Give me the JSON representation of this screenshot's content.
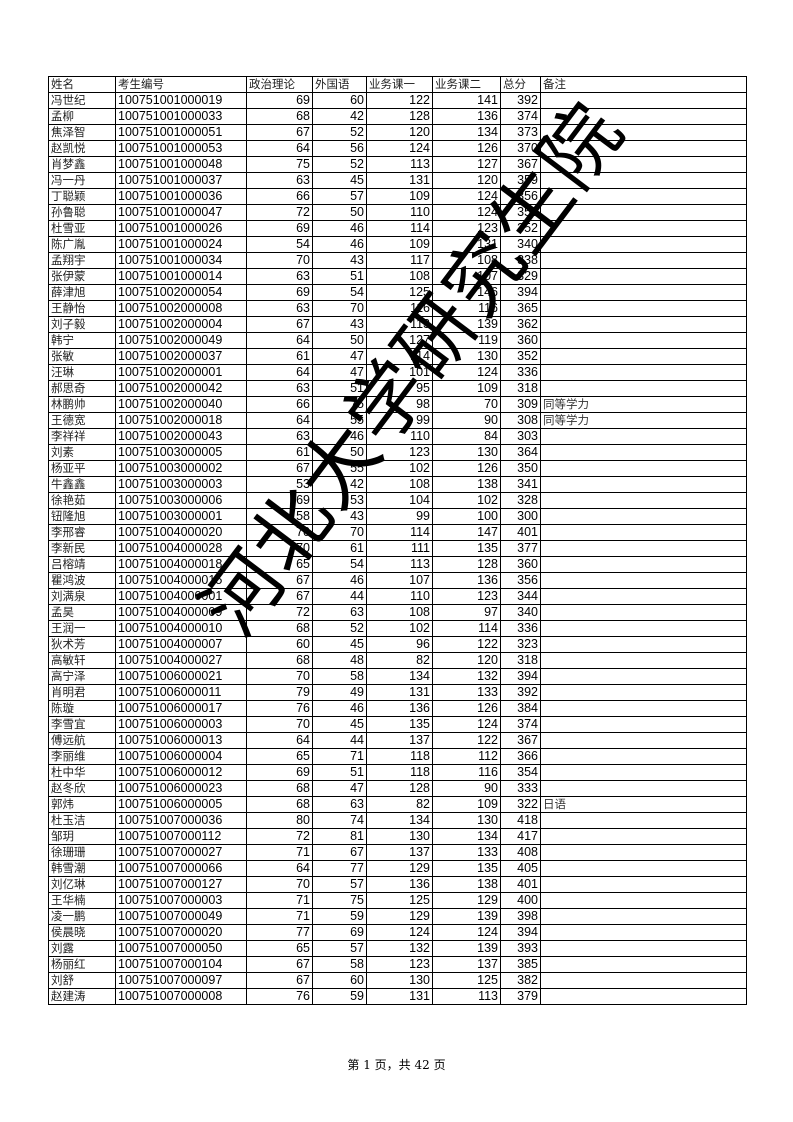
{
  "table": {
    "headers": [
      "姓名",
      "考生编号",
      "政治理论",
      "外国语",
      "业务课一",
      "业务课二",
      "总分",
      "备注"
    ],
    "rows": [
      [
        "冯世纪",
        "100751001000019",
        "69",
        "60",
        "122",
        "141",
        "392",
        ""
      ],
      [
        "孟柳",
        "100751001000033",
        "68",
        "42",
        "128",
        "136",
        "374",
        ""
      ],
      [
        "焦泽智",
        "100751001000051",
        "67",
        "52",
        "120",
        "134",
        "373",
        ""
      ],
      [
        "赵凯悦",
        "100751001000053",
        "64",
        "56",
        "124",
        "126",
        "370",
        ""
      ],
      [
        "肖梦鑫",
        "100751001000048",
        "75",
        "52",
        "113",
        "127",
        "367",
        ""
      ],
      [
        "冯一丹",
        "100751001000037",
        "63",
        "45",
        "131",
        "120",
        "359",
        ""
      ],
      [
        "丁聪颖",
        "100751001000036",
        "66",
        "57",
        "109",
        "124",
        "356",
        ""
      ],
      [
        "孙鲁聪",
        "100751001000047",
        "72",
        "50",
        "110",
        "124",
        "356",
        ""
      ],
      [
        "杜雪亚",
        "100751001000026",
        "69",
        "46",
        "114",
        "123",
        "352",
        ""
      ],
      [
        "陈广胤",
        "100751001000024",
        "54",
        "46",
        "109",
        "131",
        "340",
        ""
      ],
      [
        "孟翔宇",
        "100751001000034",
        "70",
        "43",
        "117",
        "108",
        "338",
        ""
      ],
      [
        "张伊蒙",
        "100751001000014",
        "63",
        "51",
        "108",
        "107",
        "329",
        ""
      ],
      [
        "薛津旭",
        "100751002000054",
        "69",
        "54",
        "125",
        "146",
        "394",
        ""
      ],
      [
        "王静怡",
        "100751002000008",
        "63",
        "70",
        "116",
        "116",
        "365",
        ""
      ],
      [
        "刘子毅",
        "100751002000004",
        "67",
        "43",
        "113",
        "139",
        "362",
        ""
      ],
      [
        "韩宁",
        "100751002000049",
        "64",
        "50",
        "127",
        "119",
        "360",
        ""
      ],
      [
        "张敏",
        "100751002000037",
        "61",
        "47",
        "114",
        "130",
        "352",
        ""
      ],
      [
        "汪琳",
        "100751002000001",
        "64",
        "47",
        "101",
        "124",
        "336",
        ""
      ],
      [
        "郝思奇",
        "100751002000042",
        "63",
        "51",
        "95",
        "109",
        "318",
        ""
      ],
      [
        "林鹏帅",
        "100751002000040",
        "66",
        "75",
        "98",
        "70",
        "309",
        "同等学力"
      ],
      [
        "王德宽",
        "100751002000018",
        "64",
        "55",
        "99",
        "90",
        "308",
        "同等学力"
      ],
      [
        "李祥祥",
        "100751002000043",
        "63",
        "46",
        "110",
        "84",
        "303",
        ""
      ],
      [
        "刘素",
        "100751003000005",
        "61",
        "50",
        "123",
        "130",
        "364",
        ""
      ],
      [
        "杨亚平",
        "100751003000002",
        "67",
        "55",
        "102",
        "126",
        "350",
        ""
      ],
      [
        "牛鑫鑫",
        "100751003000003",
        "53",
        "42",
        "108",
        "138",
        "341",
        ""
      ],
      [
        "徐艳茹",
        "100751003000006",
        "69",
        "53",
        "104",
        "102",
        "328",
        ""
      ],
      [
        "钮隆旭",
        "100751003000001",
        "58",
        "43",
        "99",
        "100",
        "300",
        ""
      ],
      [
        "李邢睿",
        "100751004000020",
        "70",
        "70",
        "114",
        "147",
        "401",
        ""
      ],
      [
        "李新民",
        "100751004000028",
        "70",
        "61",
        "111",
        "135",
        "377",
        ""
      ],
      [
        "吕榕靖",
        "100751004000018",
        "65",
        "54",
        "113",
        "128",
        "360",
        ""
      ],
      [
        "瞿鸿波",
        "100751004000015",
        "67",
        "46",
        "107",
        "136",
        "356",
        ""
      ],
      [
        "刘满泉",
        "100751004000001",
        "67",
        "44",
        "110",
        "123",
        "344",
        ""
      ],
      [
        "孟昊",
        "100751004000009",
        "72",
        "63",
        "108",
        "97",
        "340",
        ""
      ],
      [
        "王润一",
        "100751004000010",
        "68",
        "52",
        "102",
        "114",
        "336",
        ""
      ],
      [
        "狄术芳",
        "100751004000007",
        "60",
        "45",
        "96",
        "122",
        "323",
        ""
      ],
      [
        "高敏轩",
        "100751004000027",
        "68",
        "48",
        "82",
        "120",
        "318",
        ""
      ],
      [
        "高宁泽",
        "100751006000021",
        "70",
        "58",
        "134",
        "132",
        "394",
        ""
      ],
      [
        "肖明君",
        "100751006000011",
        "79",
        "49",
        "131",
        "133",
        "392",
        ""
      ],
      [
        "陈璇",
        "100751006000017",
        "76",
        "46",
        "136",
        "126",
        "384",
        ""
      ],
      [
        "李雪宜",
        "100751006000003",
        "70",
        "45",
        "135",
        "124",
        "374",
        ""
      ],
      [
        "傅远航",
        "100751006000013",
        "64",
        "44",
        "137",
        "122",
        "367",
        ""
      ],
      [
        "李丽维",
        "100751006000004",
        "65",
        "71",
        "118",
        "112",
        "366",
        ""
      ],
      [
        "杜中华",
        "100751006000012",
        "69",
        "51",
        "118",
        "116",
        "354",
        ""
      ],
      [
        "赵冬欣",
        "100751006000023",
        "68",
        "47",
        "128",
        "90",
        "333",
        ""
      ],
      [
        "郭炜",
        "100751006000005",
        "68",
        "63",
        "82",
        "109",
        "322",
        "日语"
      ],
      [
        "杜玉洁",
        "100751007000036",
        "80",
        "74",
        "134",
        "130",
        "418",
        ""
      ],
      [
        "邹玥",
        "100751007000112",
        "72",
        "81",
        "130",
        "134",
        "417",
        ""
      ],
      [
        "徐珊珊",
        "100751007000027",
        "71",
        "67",
        "137",
        "133",
        "408",
        ""
      ],
      [
        "韩雪潮",
        "100751007000066",
        "64",
        "77",
        "129",
        "135",
        "405",
        ""
      ],
      [
        "刘亿琳",
        "100751007000127",
        "70",
        "57",
        "136",
        "138",
        "401",
        ""
      ],
      [
        "王华楠",
        "100751007000003",
        "71",
        "75",
        "125",
        "129",
        "400",
        ""
      ],
      [
        "凌一鹏",
        "100751007000049",
        "71",
        "59",
        "129",
        "139",
        "398",
        ""
      ],
      [
        "侯晨晓",
        "100751007000020",
        "77",
        "69",
        "124",
        "124",
        "394",
        ""
      ],
      [
        "刘露",
        "100751007000050",
        "65",
        "57",
        "132",
        "139",
        "393",
        ""
      ],
      [
        "杨丽红",
        "100751007000104",
        "67",
        "58",
        "123",
        "137",
        "385",
        ""
      ],
      [
        "刘舒",
        "100751007000097",
        "67",
        "60",
        "130",
        "125",
        "382",
        ""
      ],
      [
        "赵建涛",
        "100751007000008",
        "76",
        "59",
        "131",
        "113",
        "379",
        ""
      ]
    ]
  },
  "watermark": "河北大学研究生院",
  "footer": "第 1 页，共 42 页"
}
